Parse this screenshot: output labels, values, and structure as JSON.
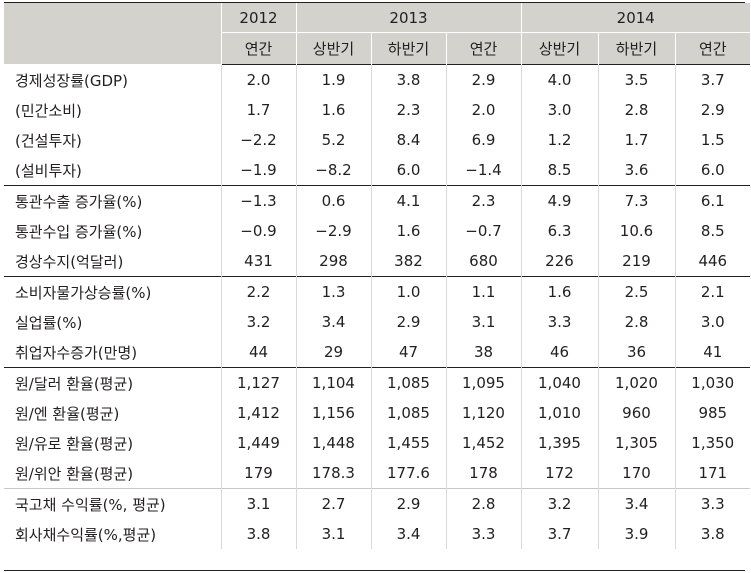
{
  "header": {
    "years": [
      "2012",
      "2013",
      "2014"
    ],
    "periods": [
      "연간",
      "상반기",
      "하반기",
      "연간",
      "상반기",
      "하반기",
      "연간"
    ]
  },
  "rows": [
    {
      "label": "경제성장률(GDP)",
      "values": [
        "2.0",
        "1.9",
        "3.8",
        "2.9",
        "4.0",
        "3.5",
        "3.7"
      ]
    },
    {
      "label": "(민간소비)",
      "values": [
        "1.7",
        "1.6",
        "2.3",
        "2.0",
        "3.0",
        "2.8",
        "2.9"
      ]
    },
    {
      "label": "(건설투자)",
      "values": [
        "−2.2",
        "5.2",
        "8.4",
        "6.9",
        "1.2",
        "1.7",
        "1.5"
      ]
    },
    {
      "label": "(설비투자)",
      "values": [
        "−1.9",
        "−8.2",
        "6.0",
        "−1.4",
        "8.5",
        "3.6",
        "6.0"
      ]
    },
    {
      "label": "통관수출 증가율(%)",
      "values": [
        "−1.3",
        "0.6",
        "4.1",
        "2.3",
        "4.9",
        "7.3",
        "6.1"
      ]
    },
    {
      "label": "통관수입 증가율(%)",
      "values": [
        "−0.9",
        "−2.9",
        "1.6",
        "−0.7",
        "6.3",
        "10.6",
        "8.5"
      ]
    },
    {
      "label": "경상수지(억달러)",
      "values": [
        "431",
        "298",
        "382",
        "680",
        "226",
        "219",
        "446"
      ]
    },
    {
      "label": "소비자물가상승률(%)",
      "values": [
        "2.2",
        "1.3",
        "1.0",
        "1.1",
        "1.6",
        "2.5",
        "2.1"
      ]
    },
    {
      "label": "실업률(%)",
      "values": [
        "3.2",
        "3.4",
        "2.9",
        "3.1",
        "3.3",
        "2.8",
        "3.0"
      ]
    },
    {
      "label": "취업자수증가(만명)",
      "values": [
        "44",
        "29",
        "47",
        "38",
        "46",
        "36",
        "41"
      ]
    },
    {
      "label": "원/달러 환율(평균)",
      "values": [
        "1,127",
        "1,104",
        "1,085",
        "1,095",
        "1,040",
        "1,020",
        "1,030"
      ]
    },
    {
      "label": "원/엔 환율(평균)",
      "values": [
        "1,412",
        "1,156",
        "1,085",
        "1,120",
        "1,010",
        "960",
        "985"
      ]
    },
    {
      "label": "원/유로 환율(평균)",
      "values": [
        "1,449",
        "1,448",
        "1,455",
        "1,452",
        "1,395",
        "1,305",
        "1,350"
      ]
    },
    {
      "label": "원/위안 환율(평균)",
      "values": [
        "179",
        "178.3",
        "177.6",
        "178",
        "172",
        "170",
        "171"
      ]
    },
    {
      "label": "국고채 수익률(%, 평균)",
      "values": [
        "3.1",
        "2.7",
        "2.9",
        "2.8",
        "3.2",
        "3.4",
        "3.3"
      ]
    },
    {
      "label": "회사채수익률(%,평균)",
      "values": [
        "3.8",
        "3.1",
        "3.4",
        "3.3",
        "3.7",
        "3.9",
        "3.8"
      ]
    }
  ],
  "colors": {
    "header_bg": "#d3d2cc",
    "rule": "#231f20"
  }
}
